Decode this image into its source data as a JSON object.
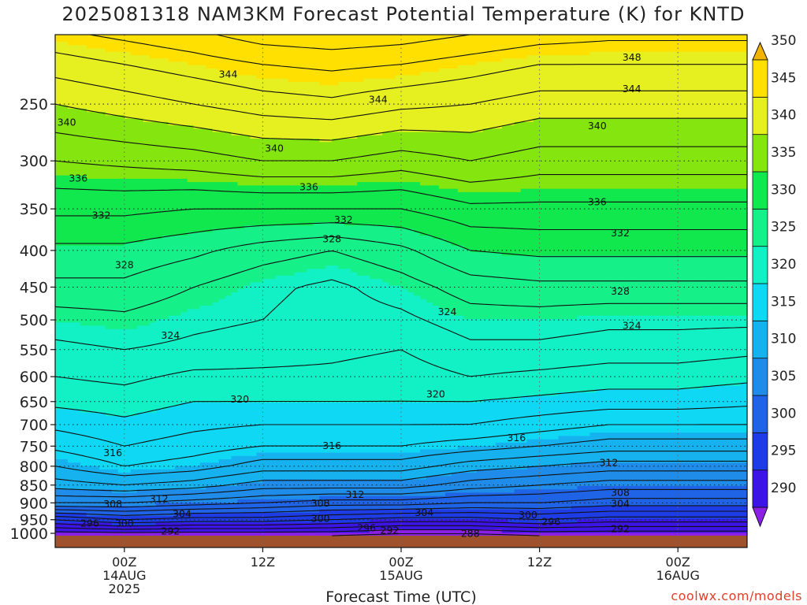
{
  "title": "2025081318 NAM3KM Forecast Potential Temperature (K) for KNTD",
  "credit": "coolwx.com/models",
  "chart_data": {
    "type": "heatmap",
    "title": "2025081318 NAM3KM Forecast Potential Temperature (K) for KNTD",
    "xlabel": "Forecast Time (UTC)",
    "ylabel": "",
    "x_unit": "hours from 2025-08-13 18Z",
    "xlim": [
      0,
      60
    ],
    "ylim": [
      1000,
      200
    ],
    "y_scale": "log",
    "x_ticks": [
      {
        "x": 6,
        "line1": "00Z",
        "line2": "14AUG",
        "line3": "2025"
      },
      {
        "x": 18,
        "line1": "12Z",
        "line2": "",
        "line3": ""
      },
      {
        "x": 30,
        "line1": "00Z",
        "line2": "15AUG",
        "line3": ""
      },
      {
        "x": 42,
        "line1": "12Z",
        "line2": "",
        "line3": ""
      },
      {
        "x": 54,
        "line1": "00Z",
        "line2": "16AUG",
        "line3": ""
      }
    ],
    "y_ticks": [
      250,
      300,
      350,
      400,
      450,
      500,
      550,
      600,
      650,
      700,
      750,
      800,
      850,
      900,
      950,
      1000
    ],
    "colorbar": {
      "levels": [
        290,
        295,
        300,
        305,
        310,
        315,
        320,
        325,
        330,
        335,
        340,
        345,
        350
      ],
      "colors": [
        "#8c1fe6",
        "#3c14e6",
        "#1e3ce6",
        "#1f63e6",
        "#1e8ce8",
        "#16b2f0",
        "#0fd8f4",
        "#12f0c6",
        "#16f088",
        "#10e84e",
        "#84e60e",
        "#e6f020",
        "#ffe000",
        "#f2b400"
      ]
    },
    "profiles": [
      {
        "x": 0,
        "theta": [
          [
            1000,
            288
          ],
          [
            950,
            296
          ],
          [
            900,
            306
          ],
          [
            850,
            311
          ],
          [
            800,
            314
          ],
          [
            750,
            316.5
          ],
          [
            700,
            318.5
          ],
          [
            650,
            320.5
          ],
          [
            600,
            322
          ],
          [
            550,
            323.5
          ],
          [
            500,
            325
          ],
          [
            450,
            327.5
          ],
          [
            400,
            329.5
          ],
          [
            350,
            332.5
          ],
          [
            300,
            336
          ],
          [
            250,
            340
          ],
          [
            220,
            343
          ],
          [
            200,
            345.5
          ]
        ]
      },
      {
        "x": 6,
        "theta": [
          [
            1000,
            288
          ],
          [
            950,
            298
          ],
          [
            900,
            306
          ],
          [
            850,
            312
          ],
          [
            800,
            316
          ],
          [
            750,
            318
          ],
          [
            700,
            319.5
          ],
          [
            650,
            321
          ],
          [
            600,
            322.5
          ],
          [
            550,
            324
          ],
          [
            500,
            325.5
          ],
          [
            450,
            327.5
          ],
          [
            400,
            329.5
          ],
          [
            350,
            332.5
          ],
          [
            300,
            336.5
          ],
          [
            250,
            341
          ],
          [
            220,
            344
          ],
          [
            200,
            346.5
          ]
        ]
      },
      {
        "x": 12,
        "theta": [
          [
            1000,
            288
          ],
          [
            950,
            297
          ],
          [
            900,
            305
          ],
          [
            850,
            311
          ],
          [
            800,
            315
          ],
          [
            750,
            317
          ],
          [
            700,
            318.5
          ],
          [
            650,
            320
          ],
          [
            600,
            321.5
          ],
          [
            550,
            323.5
          ],
          [
            500,
            324.5
          ],
          [
            450,
            326
          ],
          [
            400,
            328.5
          ],
          [
            350,
            332
          ],
          [
            300,
            337
          ],
          [
            250,
            342
          ],
          [
            220,
            345
          ],
          [
            200,
            347.5
          ]
        ]
      },
      {
        "x": 18,
        "theta": [
          [
            1000,
            288
          ],
          [
            950,
            297
          ],
          [
            900,
            304
          ],
          [
            850,
            309
          ],
          [
            800,
            313
          ],
          [
            750,
            316
          ],
          [
            700,
            318
          ],
          [
            650,
            320
          ],
          [
            600,
            321.5
          ],
          [
            550,
            323
          ],
          [
            500,
            324
          ],
          [
            450,
            324.5
          ],
          [
            400,
            327
          ],
          [
            350,
            332
          ],
          [
            300,
            338
          ],
          [
            250,
            343
          ],
          [
            220,
            346
          ],
          [
            200,
            349
          ]
        ]
      },
      {
        "x": 24,
        "theta": [
          [
            1000,
            288
          ],
          [
            950,
            296
          ],
          [
            900,
            303
          ],
          [
            850,
            309
          ],
          [
            800,
            313
          ],
          [
            750,
            316
          ],
          [
            700,
            318
          ],
          [
            650,
            320
          ],
          [
            600,
            321.5
          ],
          [
            550,
            322.5
          ],
          [
            500,
            323
          ],
          [
            450,
            323.5
          ],
          [
            400,
            326
          ],
          [
            350,
            332
          ],
          [
            300,
            338
          ],
          [
            250,
            343.5
          ],
          [
            220,
            346.5
          ],
          [
            200,
            349.5
          ]
        ]
      },
      {
        "x": 30,
        "theta": [
          [
            1000,
            287
          ],
          [
            950,
            295
          ],
          [
            900,
            303
          ],
          [
            850,
            309
          ],
          [
            800,
            313
          ],
          [
            750,
            316
          ],
          [
            700,
            318
          ],
          [
            650,
            320
          ],
          [
            600,
            321
          ],
          [
            550,
            322
          ],
          [
            500,
            323.5
          ],
          [
            450,
            325
          ],
          [
            400,
            327.5
          ],
          [
            350,
            332
          ],
          [
            300,
            337
          ],
          [
            250,
            342.5
          ],
          [
            220,
            346
          ],
          [
            200,
            349
          ]
        ]
      },
      {
        "x": 36,
        "theta": [
          [
            1000,
            287
          ],
          [
            950,
            295
          ],
          [
            900,
            302
          ],
          [
            850,
            307
          ],
          [
            800,
            311
          ],
          [
            750,
            315
          ],
          [
            700,
            318
          ],
          [
            650,
            320
          ],
          [
            600,
            322
          ],
          [
            550,
            323.5
          ],
          [
            500,
            325
          ],
          [
            450,
            327
          ],
          [
            400,
            330
          ],
          [
            350,
            333.5
          ],
          [
            300,
            338
          ],
          [
            250,
            342
          ],
          [
            220,
            345
          ],
          [
            200,
            348
          ]
        ]
      },
      {
        "x": 42,
        "theta": [
          [
            1000,
            288
          ],
          [
            950,
            296
          ],
          [
            900,
            302
          ],
          [
            850,
            306
          ],
          [
            800,
            310
          ],
          [
            750,
            314
          ],
          [
            700,
            317
          ],
          [
            650,
            319.5
          ],
          [
            600,
            321.5
          ],
          [
            550,
            323.5
          ],
          [
            500,
            325
          ],
          [
            450,
            327.5
          ],
          [
            400,
            330.5
          ],
          [
            350,
            333.5
          ],
          [
            300,
            337
          ],
          [
            250,
            341
          ],
          [
            220,
            344
          ],
          [
            200,
            347
          ]
        ]
      },
      {
        "x": 48,
        "theta": [
          [
            1000,
            288
          ],
          [
            950,
            295
          ],
          [
            900,
            301
          ],
          [
            850,
            305
          ],
          [
            800,
            309
          ],
          [
            750,
            313
          ],
          [
            700,
            316
          ],
          [
            650,
            319
          ],
          [
            600,
            321
          ],
          [
            550,
            323
          ],
          [
            500,
            324.5
          ],
          [
            450,
            327.5
          ],
          [
            400,
            330.5
          ],
          [
            350,
            333.5
          ],
          [
            300,
            337
          ],
          [
            250,
            341
          ],
          [
            220,
            344
          ],
          [
            200,
            346.5
          ]
        ]
      },
      {
        "x": 54,
        "theta": [
          [
            1000,
            288
          ],
          [
            950,
            295
          ],
          [
            900,
            301
          ],
          [
            850,
            305
          ],
          [
            800,
            309
          ],
          [
            750,
            313
          ],
          [
            700,
            316
          ],
          [
            650,
            319
          ],
          [
            600,
            321
          ],
          [
            550,
            323
          ],
          [
            500,
            324.5
          ],
          [
            450,
            327.5
          ],
          [
            400,
            330.5
          ],
          [
            350,
            333.5
          ],
          [
            300,
            337
          ],
          [
            250,
            341
          ],
          [
            220,
            344
          ],
          [
            200,
            346.5
          ]
        ]
      },
      {
        "x": 60,
        "theta": [
          [
            1000,
            288
          ],
          [
            950,
            295
          ],
          [
            900,
            301
          ],
          [
            850,
            305
          ],
          [
            800,
            309
          ],
          [
            750,
            313
          ],
          [
            700,
            316
          ],
          [
            650,
            318.5
          ],
          [
            600,
            320.5
          ],
          [
            550,
            322.5
          ],
          [
            500,
            324.5
          ],
          [
            450,
            327.5
          ],
          [
            400,
            330.5
          ],
          [
            350,
            333.5
          ],
          [
            300,
            337
          ],
          [
            250,
            341
          ],
          [
            220,
            344
          ],
          [
            200,
            346.5
          ]
        ]
      }
    ],
    "contour_labels": [
      {
        "x": 15,
        "p": 227,
        "text": "344"
      },
      {
        "x": 28,
        "p": 246,
        "text": "344"
      },
      {
        "x": 50,
        "p": 238,
        "text": "344"
      },
      {
        "x": 50,
        "p": 215,
        "text": "348"
      },
      {
        "x": 1,
        "p": 265,
        "text": "340"
      },
      {
        "x": 19,
        "p": 288,
        "text": "340"
      },
      {
        "x": 47,
        "p": 268,
        "text": "340"
      },
      {
        "x": 2,
        "p": 317,
        "text": "336"
      },
      {
        "x": 22,
        "p": 326,
        "text": "336"
      },
      {
        "x": 47,
        "p": 342,
        "text": "336"
      },
      {
        "x": 4,
        "p": 357,
        "text": "332"
      },
      {
        "x": 25,
        "p": 362,
        "text": "332"
      },
      {
        "x": 49,
        "p": 378,
        "text": "332"
      },
      {
        "x": 6,
        "p": 419,
        "text": "328"
      },
      {
        "x": 24,
        "p": 385,
        "text": "328"
      },
      {
        "x": 49,
        "p": 456,
        "text": "328"
      },
      {
        "x": 10,
        "p": 525,
        "text": "324"
      },
      {
        "x": 34,
        "p": 487,
        "text": "324"
      },
      {
        "x": 50,
        "p": 509,
        "text": "324"
      },
      {
        "x": 16,
        "p": 645,
        "text": "320"
      },
      {
        "x": 33,
        "p": 634,
        "text": "320"
      },
      {
        "x": 5,
        "p": 766,
        "text": "316"
      },
      {
        "x": 24,
        "p": 748,
        "text": "316"
      },
      {
        "x": 40,
        "p": 730,
        "text": "316"
      },
      {
        "x": 48,
        "p": 790,
        "text": "312"
      },
      {
        "x": 9,
        "p": 888,
        "text": "312"
      },
      {
        "x": 26,
        "p": 876,
        "text": "312"
      },
      {
        "x": 49,
        "p": 870,
        "text": "308"
      },
      {
        "x": 5,
        "p": 903,
        "text": "308"
      },
      {
        "x": 23,
        "p": 900,
        "text": "308"
      },
      {
        "x": 49,
        "p": 902,
        "text": "304"
      },
      {
        "x": 11,
        "p": 932,
        "text": "304"
      },
      {
        "x": 32,
        "p": 928,
        "text": "304"
      },
      {
        "x": 6,
        "p": 960,
        "text": "300"
      },
      {
        "x": 23,
        "p": 946,
        "text": "300"
      },
      {
        "x": 41,
        "p": 935,
        "text": "300"
      },
      {
        "x": 3,
        "p": 960,
        "text": "296"
      },
      {
        "x": 27,
        "p": 975,
        "text": "296"
      },
      {
        "x": 43,
        "p": 955,
        "text": "296"
      },
      {
        "x": 10,
        "p": 985,
        "text": "292"
      },
      {
        "x": 29,
        "p": 983,
        "text": "292"
      },
      {
        "x": 49,
        "p": 977,
        "text": "292"
      },
      {
        "x": 36,
        "p": 992,
        "text": "288"
      }
    ],
    "grid": true,
    "ground_color": "#a0522d"
  }
}
